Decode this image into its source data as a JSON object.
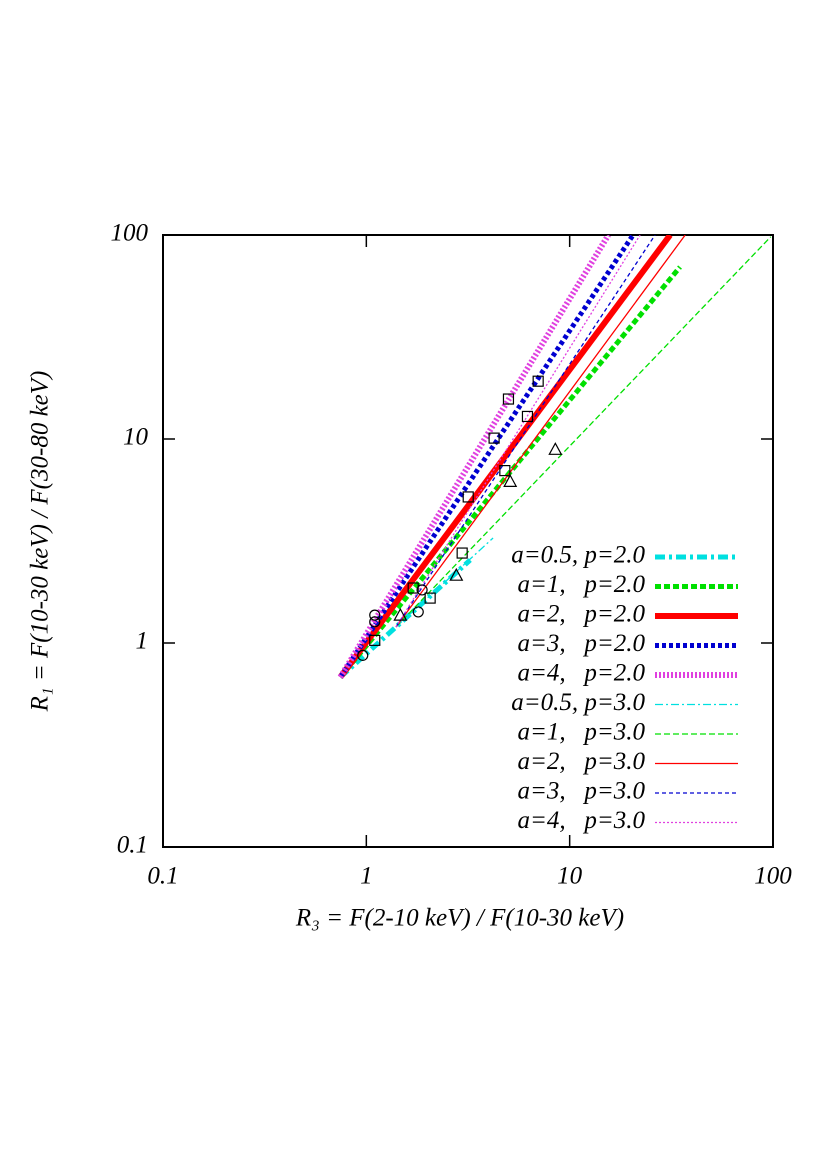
{
  "chart_data": {
    "type": "line",
    "xlabel": "R₃ = F(2-10 keV) / F(10-30 keV)",
    "ylabel": "R₁ = F(10-30 keV) / F(30-80 keV)",
    "xscale": "log",
    "yscale": "log",
    "xlim": [
      0.1,
      100
    ],
    "ylim": [
      0.1,
      100
    ],
    "xticks": [
      0.1,
      1,
      10,
      100
    ],
    "yticks": [
      0.1,
      1,
      10,
      100
    ],
    "series": [
      {
        "name": "a=0.5, p=2.0",
        "color": "#00e0e0",
        "width": 5,
        "dash": "10 4 3 4",
        "x": [
          0.745,
          3.24
        ],
        "values": [
          0.68,
          2.55
        ]
      },
      {
        "name": "a=1,   p=2.0",
        "color": "#00e000",
        "width": 5,
        "dash": "6 3",
        "x": [
          0.745,
          34.9
        ],
        "values": [
          0.68,
          69.7
        ]
      },
      {
        "name": "a=2,   p=2.0",
        "color": "#ff0000",
        "width": 6,
        "dash": "",
        "x": [
          0.745,
          31.2
        ],
        "values": [
          0.68,
          100
        ]
      },
      {
        "name": "a=3,   p=2.0",
        "color": "#0000d0",
        "width": 5,
        "dash": "4 3",
        "x": [
          0.745,
          20.5
        ],
        "values": [
          0.68,
          100
        ]
      },
      {
        "name": "a=4,   p=2.0",
        "color": "#e040e0",
        "width": 6,
        "dash": "2 2",
        "x": [
          0.745,
          15.5
        ],
        "values": [
          0.68,
          100
        ]
      },
      {
        "name": "a=0.5, p=3.0",
        "color": "#00e0e0",
        "width": 1.3,
        "dash": "8 3 2 3",
        "x": [
          1.4,
          4.2
        ],
        "values": [
          1.2,
          3.27
        ]
      },
      {
        "name": "a=1,   p=3.0",
        "color": "#00e000",
        "width": 1.3,
        "dash": "6 3",
        "x": [
          1.4,
          97.5
        ],
        "values": [
          1.2,
          98
        ]
      },
      {
        "name": "a=2,   p=3.0",
        "color": "#ff0000",
        "width": 1.3,
        "dash": "",
        "x": [
          1.4,
          37
        ],
        "values": [
          1.2,
          100
        ]
      },
      {
        "name": "a=3,   p=3.0",
        "color": "#0000d0",
        "width": 1.3,
        "dash": "4 3",
        "x": [
          1.4,
          26.3
        ],
        "values": [
          1.2,
          100
        ]
      },
      {
        "name": "a=4,   p=3.0",
        "color": "#e040e0",
        "width": 1.3,
        "dash": "2 2",
        "x": [
          1.4,
          22.2
        ],
        "values": [
          1.2,
          100
        ]
      }
    ],
    "markers": [
      {
        "shape": "circle",
        "x": [
          0.96,
          1.1,
          1.1,
          1.8,
          1.88
        ],
        "y": [
          0.87,
          1.37,
          1.27,
          1.42,
          1.82
        ]
      },
      {
        "shape": "triangle",
        "x": [
          1.47,
          2.77,
          5.1,
          8.5
        ],
        "y": [
          1.37,
          2.15,
          6.2,
          8.9
        ]
      },
      {
        "shape": "square",
        "x": [
          1.1,
          1.7,
          2.06,
          2.96,
          3.17,
          4.25,
          4.8,
          6.2,
          7,
          5
        ],
        "y": [
          1.03,
          1.86,
          1.66,
          2.76,
          5.2,
          10.1,
          7.0,
          12.9,
          19.2,
          15.7
        ]
      }
    ]
  }
}
